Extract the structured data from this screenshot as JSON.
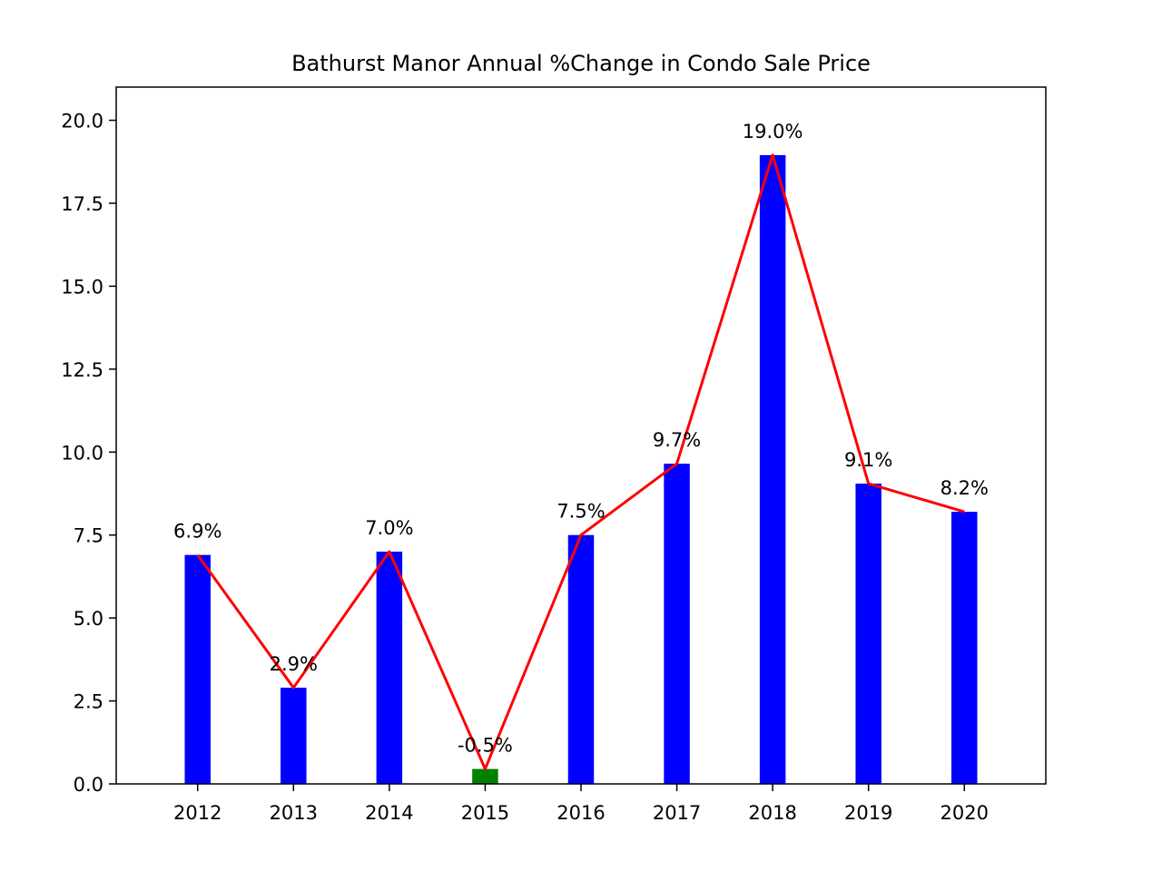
{
  "chart_data": {
    "type": "bar",
    "title": "Bathurst Manor Annual %Change in Condo Sale Price",
    "xlabel": "",
    "ylabel": "",
    "categories": [
      "2012",
      "2013",
      "2014",
      "2015",
      "2016",
      "2017",
      "2018",
      "2019",
      "2020"
    ],
    "values": [
      6.9,
      2.9,
      7.0,
      0.45,
      7.5,
      9.65,
      18.95,
      9.05,
      8.2
    ],
    "data_labels": [
      "6.9%",
      "2.9%",
      "7.0%",
      "-0.5%",
      "7.5%",
      "9.7%",
      "19.0%",
      "9.1%",
      "8.2%"
    ],
    "line_values": [
      6.9,
      2.9,
      7.0,
      0.45,
      7.5,
      9.65,
      18.95,
      9.05,
      8.2
    ],
    "ylim": [
      0,
      21
    ],
    "yticks": [
      0.0,
      2.5,
      5.0,
      7.5,
      10.0,
      12.5,
      15.0,
      17.5,
      20.0
    ],
    "ytick_labels": [
      "0.0",
      "2.5",
      "5.0",
      "7.5",
      "10.0",
      "12.5",
      "15.0",
      "17.5",
      "20.0"
    ],
    "grid": false,
    "legend": "none",
    "colors": {
      "positive_bar": "#0000ff",
      "negative_bar": "#008000",
      "trend_line": "#ff0000",
      "axes": "#000000",
      "background": "#ffffff"
    },
    "negative_flags": [
      false,
      false,
      false,
      true,
      false,
      false,
      false,
      false,
      false
    ]
  }
}
